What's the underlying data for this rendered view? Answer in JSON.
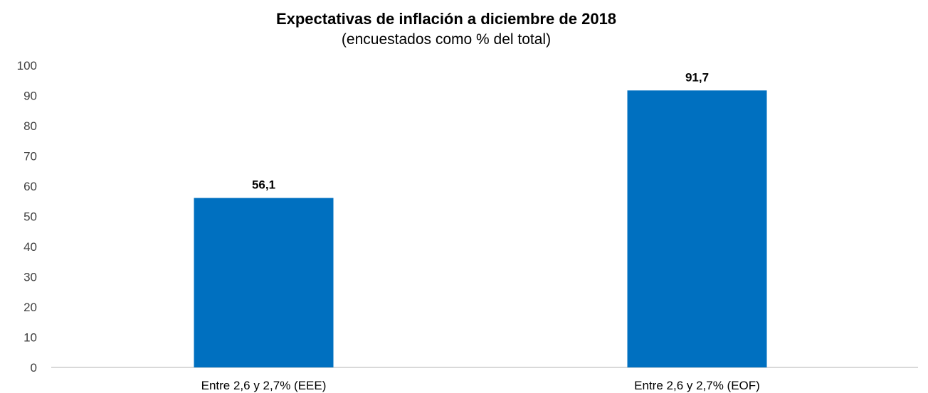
{
  "chart_data": {
    "type": "bar",
    "title": "Expectativas de inflación a diciembre de 2018",
    "subtitle": "(encuestados como % del total)",
    "categories": [
      "Entre 2,6 y 2,7% (EEE)",
      "Entre 2,6 y 2,7% (EOF)"
    ],
    "values": [
      56.1,
      91.7
    ],
    "data_labels": [
      "56,1",
      "91,7"
    ],
    "ylim": [
      0,
      100
    ],
    "yticks": [
      0,
      10,
      20,
      30,
      40,
      50,
      60,
      70,
      80,
      90,
      100
    ],
    "xlabel": "",
    "ylabel": "",
    "grid": false,
    "legend": "none",
    "bar_color": "#0070c0"
  }
}
